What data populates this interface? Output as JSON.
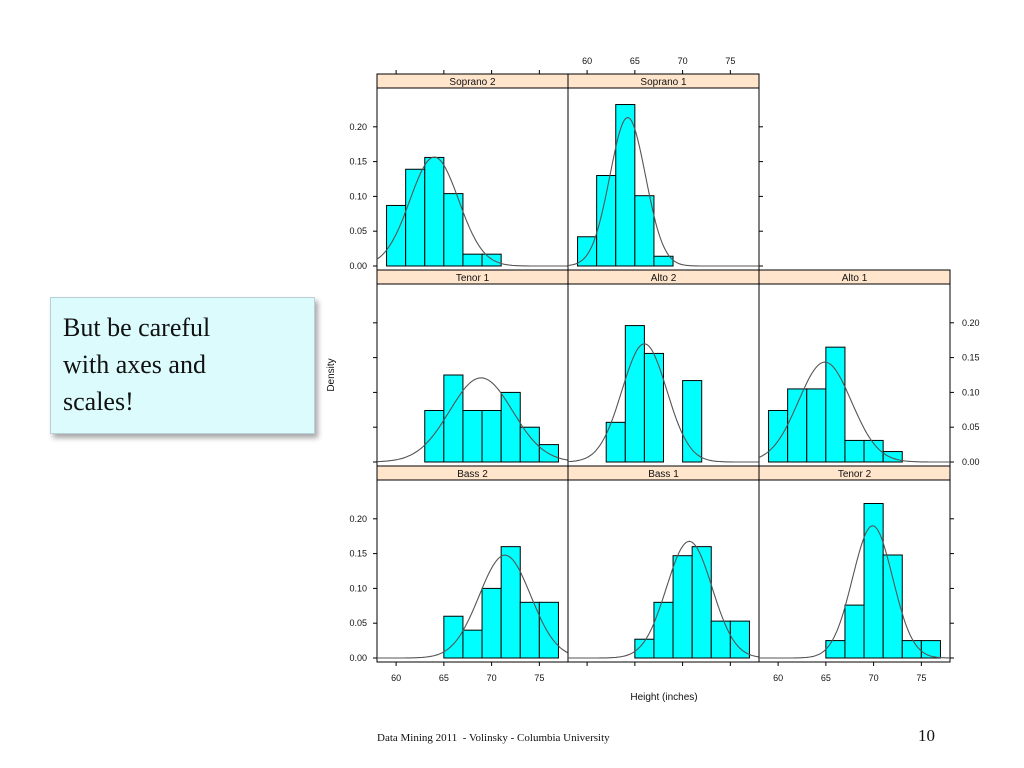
{
  "callout": {
    "text": "But be careful\nwith axes and\nscales!"
  },
  "footer": "Data Mining 2011  - Volinsky - Columbia University",
  "slide_number": "10",
  "colors": {
    "bar_fill": "#00ffff",
    "strip_fill": "#ffe5cc",
    "curve": "#555555",
    "callout_bg": "#dcfbfd"
  },
  "chart_data": {
    "type": "bar",
    "title": "",
    "xlabel": "Height (inches)",
    "ylabel": "Density",
    "xlim": [
      58,
      78
    ],
    "ylim": [
      0,
      0.25
    ],
    "x_ticks": [
      60,
      65,
      70,
      75
    ],
    "y_ticks": [
      "0.00",
      "0.05",
      "0.10",
      "0.15",
      "0.20"
    ],
    "bin_width": 2,
    "panels": [
      {
        "name": "Soprano 2",
        "bins": [
          59,
          61,
          63,
          65,
          67,
          69,
          71,
          73
        ],
        "values": [
          0.087,
          0.139,
          0.156,
          0.104,
          0.017,
          0.017,
          0,
          0
        ],
        "curve": {
          "mean": 64.0,
          "sd": 2.55
        }
      },
      {
        "name": "Soprano 1",
        "bins": [
          59,
          61,
          63,
          65,
          67
        ],
        "values": [
          0.042,
          0.13,
          0.232,
          0.101,
          0.014
        ],
        "curve": {
          "mean": 64.25,
          "sd": 1.87
        }
      },
      {
        "name": "Tenor 1",
        "bins": [
          63,
          65,
          67,
          69,
          71,
          73,
          75
        ],
        "values": [
          0.074,
          0.125,
          0.074,
          0.074,
          0.1,
          0.05,
          0.025
        ],
        "curve": {
          "mean": 68.9,
          "sd": 3.3
        }
      },
      {
        "name": "Alto 2",
        "bins": [
          62,
          64,
          66,
          68,
          70
        ],
        "values": [
          0.057,
          0.196,
          0.156,
          0,
          0.117
        ],
        "curve": {
          "mean": 66.0,
          "sd": 2.35
        }
      },
      {
        "name": "Alto 1",
        "bins": [
          59,
          61,
          63,
          65,
          67,
          69,
          71
        ],
        "values": [
          0.074,
          0.105,
          0.105,
          0.165,
          0.031,
          0.031,
          0.015
        ],
        "curve": {
          "mean": 64.9,
          "sd": 2.78
        }
      },
      {
        "name": "Bass 2",
        "bins": [
          65,
          67,
          69,
          71,
          73,
          75
        ],
        "values": [
          0.06,
          0.04,
          0.1,
          0.16,
          0.08,
          0.08
        ],
        "curve": {
          "mean": 71.4,
          "sd": 2.7
        }
      },
      {
        "name": "Bass 1",
        "bins": [
          65,
          67,
          69,
          71,
          73,
          75
        ],
        "values": [
          0.027,
          0.08,
          0.147,
          0.16,
          0.053,
          0.053
        ],
        "curve": {
          "mean": 70.7,
          "sd": 2.38
        }
      },
      {
        "name": "Tenor 2",
        "bins": [
          65,
          67,
          69,
          71,
          73,
          75
        ],
        "values": [
          0.025,
          0.076,
          0.222,
          0.148,
          0.025,
          0.025
        ],
        "curve": {
          "mean": 69.9,
          "sd": 2.1
        }
      }
    ]
  }
}
